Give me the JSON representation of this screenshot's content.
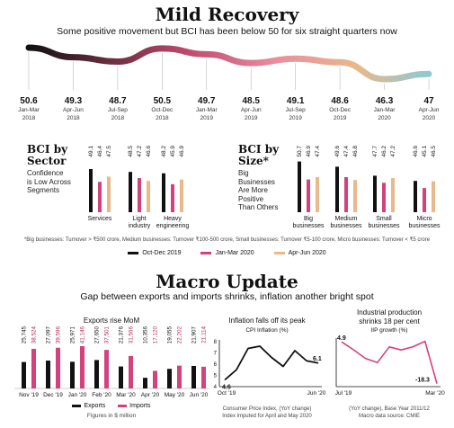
{
  "header": {
    "title": "Mild Recovery",
    "subtitle": "Some positive movement but BCI has been below 50 for six straight quarters now"
  },
  "sector": {
    "title_l1": "BCI by",
    "title_l2": "Sector",
    "sub_l1": "Confidence",
    "sub_l2": "is Low Across",
    "sub_l3": "Segments"
  },
  "size": {
    "title_l1": "BCI by",
    "title_l2": "Size*",
    "sub_l1": "Big",
    "sub_l2": "Businesses",
    "sub_l3": "Are More",
    "sub_l4": "Positive",
    "sub_l5": "Than Others"
  },
  "footnote": "*Big businesses: Turnover > ₹500 crore, Medium businesses: Turnover ₹100-500 crore, Small businesses: Turnover ₹5-100 crore, Micro businesses: Turnover < ₹5 crore",
  "macro": {
    "title": "Macro Update",
    "subtitle": "Gap between exports and imports shrinks, inflation another bright spot"
  },
  "exports_panel": {
    "title": "Exports rise MoM",
    "note": "Figures in $ million"
  },
  "cpi_panel": {
    "title": "Inflation falls off its peak",
    "caption": "CPI Inflation (%)",
    "note_l1": "Consumer Price Index, (YoY change)",
    "note_l2": "Index imputed for April and May 2020"
  },
  "iip_panel": {
    "title_l1": "Industrial production",
    "title_l2": "shrinks 18 per cent",
    "caption": "IIP growth (%)",
    "note_l1": "(YoY change), Base Year 2011/12",
    "note_l2": "Macro data source: CMIE"
  },
  "colors": {
    "black": "#111111",
    "pink": "#d3427c",
    "tan": "#e8b98a",
    "teal": "#8ec9d6",
    "line_mid": "#c14a6e"
  },
  "chart_data": [
    {
      "type": "line",
      "id": "bci_trend",
      "x": [
        "Jan-Mar 2018",
        "Apr-Jun 2018",
        "Jul-Sep 2018",
        "Oct-Dec 2018",
        "Jan-Mar 2019",
        "Apr-Jun 2019",
        "Jul-Sep 2019",
        "Oct-Dec 2019",
        "Jan-Mar 2020",
        "Apr-Jun 2020"
      ],
      "x_l1": [
        "Jan-Mar",
        "Apr-Jun",
        "Jul-Sep",
        "Oct-Dec",
        "Jan-Mar",
        "Apr-Jun",
        "Jul-Sep",
        "Oct-Dec",
        "Jan-Mar",
        "Apr-Jun"
      ],
      "x_l2": [
        "2018",
        "2018",
        "2018",
        "2018",
        "2019",
        "2019",
        "2019",
        "2019",
        "2020",
        "2020"
      ],
      "values": [
        50.6,
        49.3,
        48.7,
        50.5,
        49.7,
        48.5,
        49.1,
        48.6,
        46.3,
        47
      ],
      "labels": [
        "50.6",
        "49.3",
        "48.7",
        "50.5",
        "49.7",
        "48.5",
        "49.1",
        "48.6",
        "46.3",
        "47"
      ]
    },
    {
      "type": "bar",
      "id": "bci_sector",
      "categories": [
        "Services",
        "Light industry",
        "Heavy engineering"
      ],
      "cat_l1": [
        "Services",
        "Light",
        "Heavy"
      ],
      "cat_l2": [
        "",
        "industry",
        "engineering"
      ],
      "series": [
        {
          "name": "Oct-Dec 2019",
          "values": [
            49.1,
            48.5,
            48.2
          ],
          "labels": [
            "49.1",
            "48.5",
            "48.2"
          ]
        },
        {
          "name": "Jan-Mar 2020",
          "values": [
            46.4,
            47.2,
            45.9
          ],
          "labels": [
            "46.4",
            "47.2",
            "45.9"
          ]
        },
        {
          "name": "Apr-Jun 2020",
          "values": [
            47.5,
            46.6,
            46.9
          ],
          "labels": [
            "47.5",
            "46.6",
            "46.9"
          ]
        }
      ]
    },
    {
      "type": "bar",
      "id": "bci_size",
      "categories": [
        "Big businesses",
        "Medium businesses",
        "Small businesses",
        "Micro businesses"
      ],
      "cat_l1": [
        "Big",
        "Medium",
        "Small",
        "Micro"
      ],
      "cat_l2": [
        "businesses",
        "businesses",
        "businesses",
        "businesses"
      ],
      "series": [
        {
          "name": "Oct-Dec 2019",
          "values": [
            50.7,
            49.6,
            47.7,
            46.6
          ],
          "labels": [
            "50.7",
            "49.6",
            "47.7",
            "46.6"
          ]
        },
        {
          "name": "Jan-Mar 2020",
          "values": [
            46.9,
            47.4,
            46.2,
            45.1
          ],
          "labels": [
            "46.9",
            "47.4",
            "46.2",
            "45.1"
          ]
        },
        {
          "name": "Apr-Jun 2020",
          "values": [
            47.4,
            46.8,
            47.2,
            46.5
          ],
          "labels": [
            "47.4",
            "46.8",
            "47.2",
            "46.5"
          ]
        }
      ]
    },
    {
      "type": "bar",
      "id": "exports_imports",
      "categories": [
        "Nov '19",
        "Dec '19",
        "Jan '20",
        "Feb '20",
        "Mar '20",
        "Apr '20",
        "May '20",
        "Jun '20"
      ],
      "series": [
        {
          "name": "Exports",
          "values": [
            25745,
            27097,
            25971,
            27650,
            21376,
            10356,
            19055,
            21907
          ],
          "labels": [
            "25,745",
            "27,097",
            "25,971",
            "27,650",
            "21,376",
            "10,356",
            "19,055",
            "21,907"
          ]
        },
        {
          "name": "Imports",
          "values": [
            38524,
            39596,
            41146,
            37501,
            31566,
            17120,
            22202,
            21114
          ],
          "labels": [
            "38,524",
            "39,596",
            "41,146",
            "37,501",
            "31,566",
            "17,120",
            "22,202",
            "21,114"
          ]
        }
      ]
    },
    {
      "type": "line",
      "id": "cpi",
      "title": "CPI Inflation (%)",
      "x": [
        "Oct '19",
        "Nov '19",
        "Dec '19",
        "Jan '20",
        "Feb '20",
        "Mar '20",
        "Apr '20",
        "May '20",
        "Jun '20"
      ],
      "x_ticks": [
        "Oct '19",
        "Jun '20"
      ],
      "values": [
        4.6,
        5.5,
        7.4,
        7.6,
        6.6,
        5.8,
        7.2,
        6.3,
        6.1
      ],
      "labels": {
        "first": "4.6",
        "last": "6.1"
      },
      "yticks": [
        "8",
        "7",
        "6",
        "5",
        "4"
      ],
      "ylim": [
        4,
        8
      ]
    },
    {
      "type": "line",
      "id": "iip",
      "title": "IIP growth (%)",
      "x": [
        "Jul '19",
        "Aug '19",
        "Sep '19",
        "Oct '19",
        "Nov '19",
        "Dec '19",
        "Jan '20",
        "Feb '20",
        "Mar '20"
      ],
      "x_ticks": [
        "Jul '19",
        "Mar '20"
      ],
      "values": [
        4.9,
        0.5,
        -4.3,
        -6.6,
        2.1,
        0.4,
        2.2,
        5.2,
        -18.3
      ],
      "labels": {
        "first": "4.9",
        "last": "-18.3"
      },
      "ylim": [
        -19,
        6
      ]
    }
  ],
  "legend": {
    "items": [
      "Oct-Dec 2019",
      "Jan-Mar 2020",
      "Apr-Jun 2020"
    ]
  },
  "exports_legend": {
    "items": [
      "Exports",
      "Imports"
    ]
  }
}
